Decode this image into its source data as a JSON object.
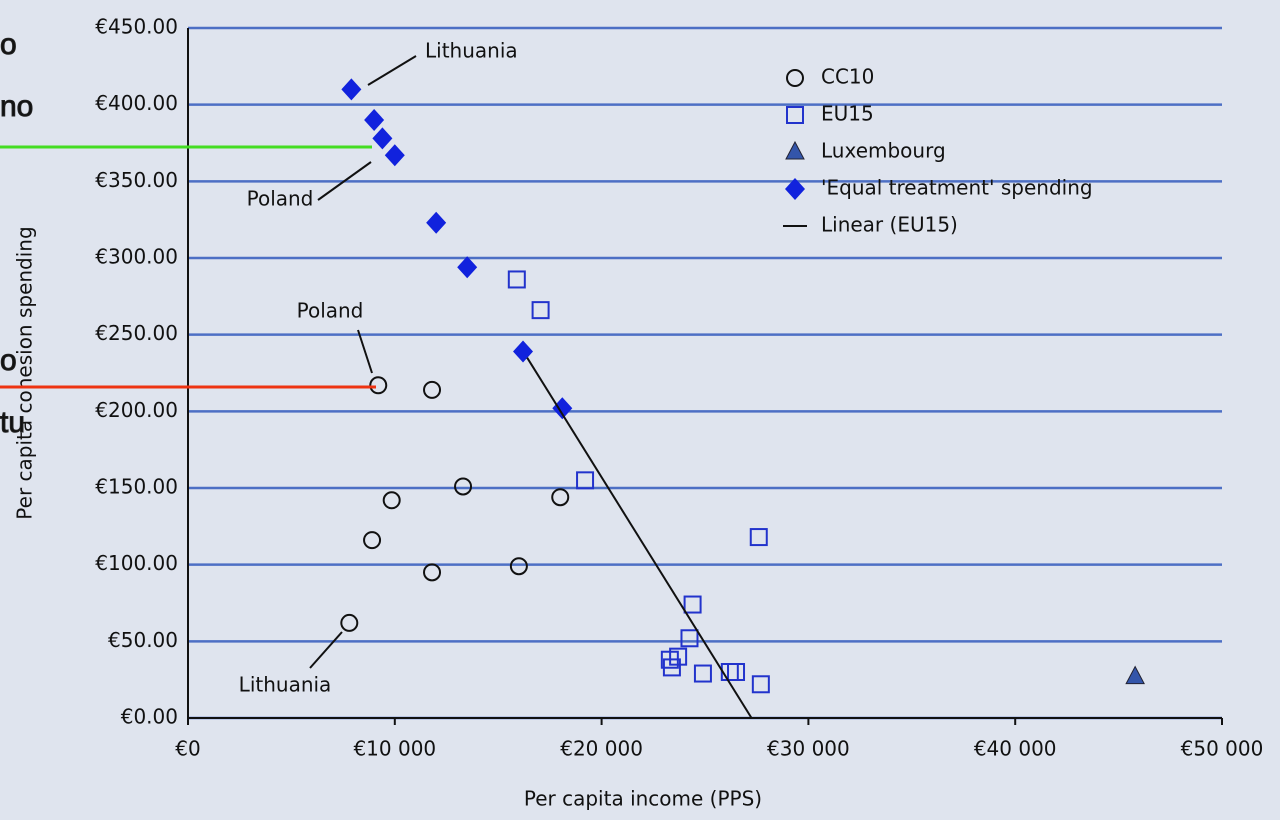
{
  "chart_data": {
    "type": "scatter",
    "xlabel": "Per capita income (PPS)",
    "ylabel": "Per capita cohesion spending",
    "xlim": [
      0,
      50000
    ],
    "ylim": [
      0,
      450
    ],
    "xticks": [
      {
        "value": 0,
        "label": "€0"
      },
      {
        "value": 10000,
        "label": "€10 000"
      },
      {
        "value": 20000,
        "label": "€20 000"
      },
      {
        "value": 30000,
        "label": "€30 000"
      },
      {
        "value": 40000,
        "label": "€40 000"
      },
      {
        "value": 50000,
        "label": "€50 000"
      }
    ],
    "yticks": [
      {
        "value": 0,
        "label": "€0.00"
      },
      {
        "value": 50,
        "label": "€50.00"
      },
      {
        "value": 100,
        "label": "€100.00"
      },
      {
        "value": 150,
        "label": "€150.00"
      },
      {
        "value": 200,
        "label": "€200.00"
      },
      {
        "value": 250,
        "label": "€250.00"
      },
      {
        "value": 300,
        "label": "€300.00"
      },
      {
        "value": 350,
        "label": "€350.00"
      },
      {
        "value": 400,
        "label": "€400.00"
      },
      {
        "value": 450,
        "label": "€450.00"
      }
    ],
    "grid": true,
    "grid_color": "#4d6fc4",
    "series": [
      {
        "name": "CC10",
        "color": "#111111",
        "marker": "circle",
        "x": [
          7800,
          8900,
          9850,
          11800,
          13300,
          16000,
          18000,
          9200,
          11800
        ],
        "y": [
          62,
          116,
          142,
          95,
          151,
          99,
          144,
          217,
          214
        ]
      },
      {
        "name": "EU15",
        "color": "#2233cc",
        "marker": "square",
        "x": [
          15900,
          17050,
          19200,
          27600,
          24400,
          24250,
          23300,
          23400,
          23700,
          24900,
          26200,
          26500,
          27700
        ],
        "y": [
          286,
          266,
          155,
          118,
          74,
          52,
          38,
          33,
          40,
          29,
          30,
          30,
          22
        ]
      },
      {
        "name": "Luxembourg",
        "color": "#3355aa",
        "marker": "triangle",
        "x": [
          45800
        ],
        "y": [
          27
        ]
      },
      {
        "name": "'Equal treatment' spending",
        "color": "#1122dd",
        "marker": "diamond",
        "x": [
          7900,
          9000,
          9400,
          10000,
          12000,
          13500,
          16200,
          18100
        ],
        "y": [
          410,
          390,
          378,
          367,
          323,
          294,
          239,
          202
        ]
      },
      {
        "name": "Linear (EU15)",
        "color": "#111111",
        "marker": "line",
        "x": [
          16400,
          27250
        ],
        "y": [
          235,
          0
        ]
      }
    ],
    "annotations": [
      "Lithuania",
      "Poland",
      "Poland",
      "Lithuania"
    ]
  },
  "overlay_texts": [
    "o",
    "no",
    "o",
    "tu"
  ]
}
